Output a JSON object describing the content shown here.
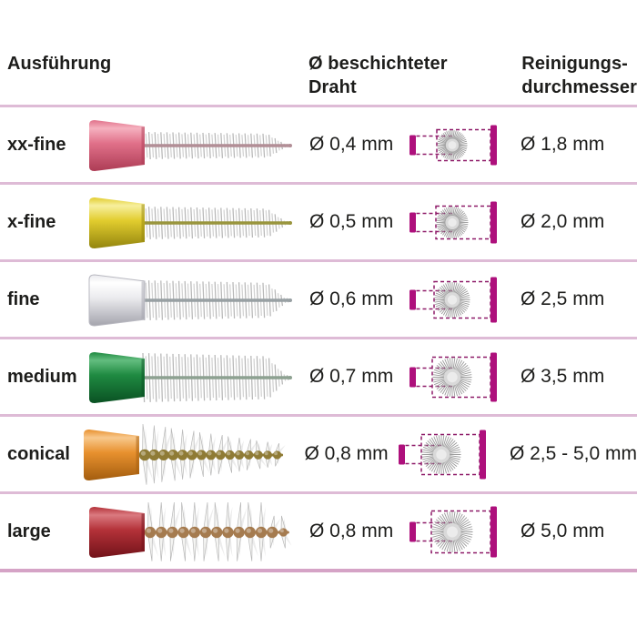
{
  "header": {
    "col1": "Ausführung",
    "col2_line1": "Ø beschichteter",
    "col2_line2": "Draht",
    "col3_line1": "Reinigungs-",
    "col3_line2": "durchmesser"
  },
  "rows": [
    {
      "label": "xx-fine",
      "wire_diameter": "Ø 0,4 mm",
      "cleaning_diameter": "Ø 1,8 mm",
      "visual": {
        "style": "dense",
        "handle": {
          "main": "#e1718a",
          "light": "#f5b1bf",
          "dark": "#ad3c55"
        },
        "wire_color": "#b28e96",
        "bristle_half": 15,
        "star_r": 17
      }
    },
    {
      "label": "x-fine",
      "wire_diameter": "Ø 0,5 mm",
      "cleaning_diameter": "Ø 2,0 mm",
      "visual": {
        "style": "dense",
        "handle": {
          "main": "#e2cd2e",
          "light": "#f7ef9e",
          "dark": "#93850f"
        },
        "wire_color": "#99953d",
        "bristle_half": 18,
        "star_r": 18
      }
    },
    {
      "label": "fine",
      "wire_diameter": "Ø 0,6 mm",
      "cleaning_diameter": "Ø 2,5 mm",
      "visual": {
        "style": "dense",
        "handle": {
          "main": "#ebebee",
          "light": "#ffffff",
          "dark": "#a4a4ad"
        },
        "handle_stroke": "#b9b9c1",
        "wire_color": "#98a0a3",
        "bristle_half": 22,
        "star_r": 20
      }
    },
    {
      "label": "medium",
      "wire_diameter": "Ø 0,7 mm",
      "cleaning_diameter": "Ø 3,5 mm",
      "visual": {
        "style": "dense",
        "handle": {
          "main": "#1f8a41",
          "light": "#63bd7f",
          "dark": "#0a5123"
        },
        "wire_color": "#8da191",
        "bristle_half": 27,
        "star_r": 22
      }
    },
    {
      "label": "conical",
      "wire_diameter": "Ø 0,8 mm",
      "cleaning_diameter": "Ø 2,5 - 5,0 mm",
      "visual": {
        "style": "spiky",
        "taper": true,
        "handle": {
          "main": "#e8912f",
          "light": "#f8c88c",
          "dark": "#a35d0e"
        },
        "bead_color": "#8f7b35",
        "spike_half": 34,
        "star_r": 22
      }
    },
    {
      "label": "large",
      "wire_diameter": "Ø 0,8 mm",
      "cleaning_diameter": "Ø 5,0 mm",
      "visual": {
        "style": "spiky",
        "taper": false,
        "handle": {
          "main": "#b43239",
          "light": "#da7a80",
          "dark": "#721219"
        },
        "bead_color": "#a57b4f",
        "spike_half": 33,
        "star_r": 23
      }
    }
  ],
  "colors": {
    "magenta": "#ae107c",
    "dash": "#8e1a68",
    "divider": "#debbd6",
    "divider_bottom": "#d5a3c6",
    "text": "#1d1d1b",
    "starburst_ray": "#9b9b9b",
    "starburst_center": "#d9d9d9",
    "bristle_a": "#b7b7b7",
    "bristle_b": "#d2d2d2",
    "spike_fill": "#f4f4f2",
    "spike_stroke": "#b9b9b9"
  }
}
